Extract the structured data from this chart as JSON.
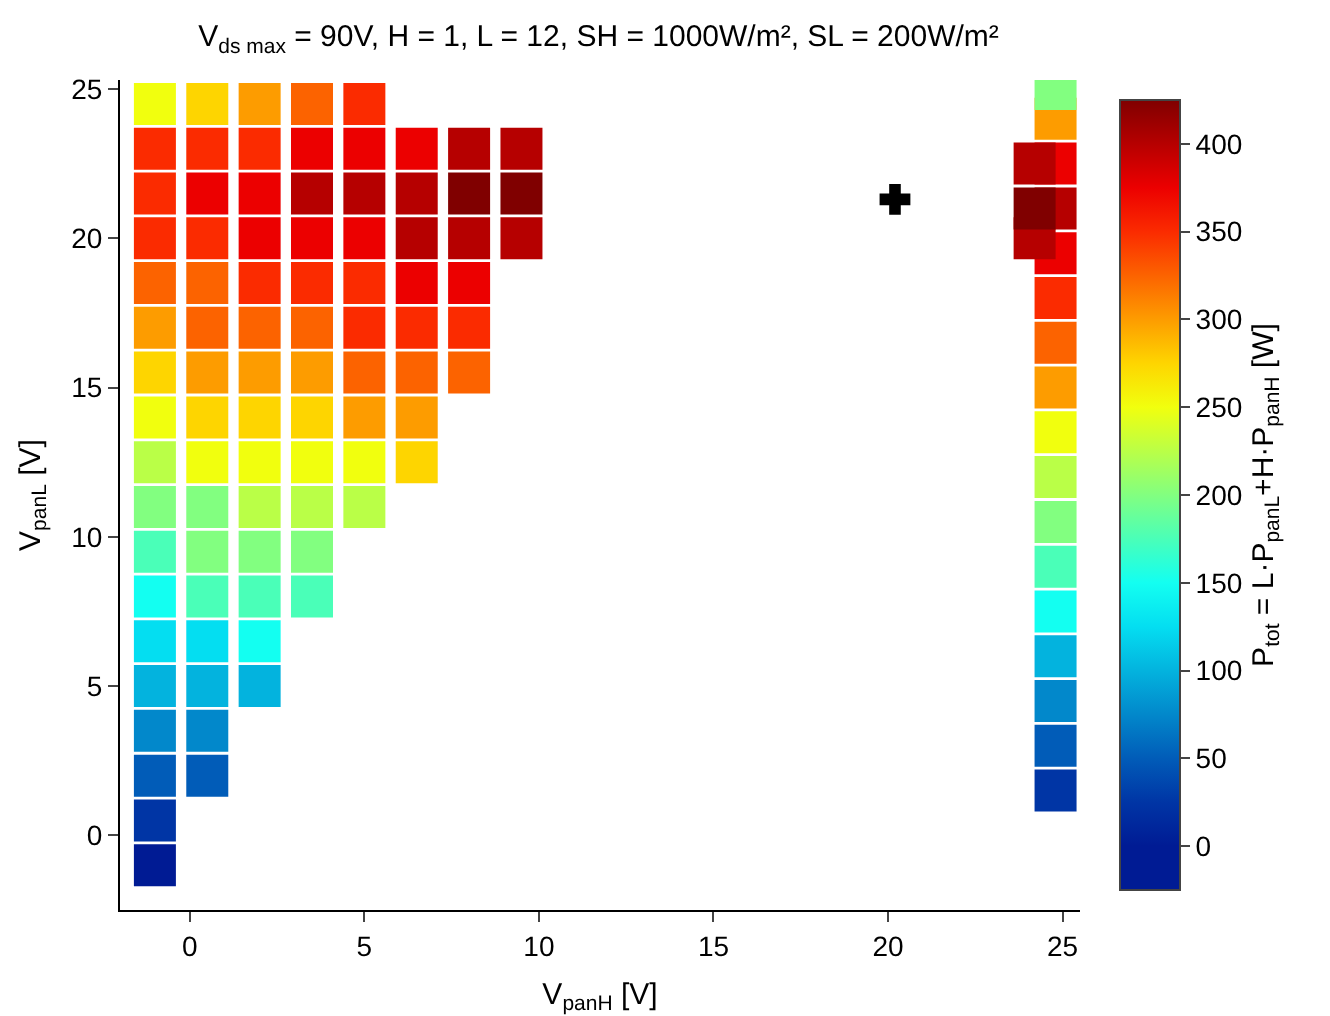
{
  "chart_data": {
    "type": "scatter",
    "title": "V$_{ds max}$ = 90V, H = 1, L = 12, SH = 1000W/m², SL = 200W/m²",
    "xlabel": "V$_{panH}$ [V]",
    "ylabel": "V$_{panL}$ [V]",
    "clabel": "P$_{tot}$ = L·P$_{panL}$+H·P$_{panH}$ [W]",
    "xlim": [
      -2,
      25.5
    ],
    "ylim": [
      -2.5,
      25.3
    ],
    "xticks": [
      0,
      5,
      10,
      15,
      20,
      25
    ],
    "yticks": [
      0,
      5,
      10,
      15,
      20,
      25
    ],
    "clim": [
      -25,
      425
    ],
    "cticks": [
      0,
      50,
      100,
      150,
      200,
      250,
      300,
      350,
      400
    ],
    "grid": false,
    "series": [
      {
        "marker": "square",
        "x": [
          -1,
          -1,
          -1,
          0.5,
          -1,
          0.5,
          -1,
          0.5,
          2,
          -1,
          0.5,
          2,
          -1,
          0.5,
          2,
          3.5,
          -1,
          0.5,
          2,
          3.5,
          -1,
          0.5,
          2,
          3.5,
          5,
          -1,
          0.5,
          2,
          3.5,
          5,
          6.5,
          -1,
          0.5,
          2,
          3.5,
          5,
          6.5,
          -1,
          0.5,
          2,
          3.5,
          5,
          6.5,
          8,
          -1,
          0.5,
          2,
          3.5,
          5,
          6.5,
          8,
          -1,
          0.5,
          2,
          3.5,
          5,
          6.5,
          8,
          -1,
          0.5,
          2,
          3.5,
          5,
          6.5,
          8,
          9.5,
          -1,
          0.5,
          2,
          3.5,
          5,
          6.5,
          8,
          9.5,
          -1,
          0.5,
          2,
          3.5,
          5,
          6.5,
          8,
          9.5,
          -1,
          0.5,
          2,
          3.5,
          5,
          24.8,
          24.8,
          24.8,
          24.8,
          24.8,
          24.8,
          24.8,
          24.8,
          24.8,
          24.8,
          24.8,
          24.8,
          24.8,
          24.8,
          24.8,
          24.8,
          24.8,
          24.2,
          24.2,
          24.2
        ],
        "values": [
          -1,
          0.5,
          2,
          2,
          3.5,
          3.5,
          5,
          5,
          5,
          6.5,
          6.5,
          6.5,
          8,
          8,
          8,
          8,
          9.5,
          9.5,
          9.5,
          9.5,
          11,
          11,
          11,
          11,
          11,
          12.5,
          12.5,
          12.5,
          12.5,
          12.5,
          12.5,
          14,
          14,
          14,
          14,
          14,
          14,
          15.5,
          15.5,
          15.5,
          15.5,
          15.5,
          15.5,
          15.5,
          17,
          17,
          17,
          17,
          17,
          17,
          17,
          18.5,
          18.5,
          18.5,
          18.5,
          18.5,
          18.5,
          18.5,
          20,
          20,
          20,
          20,
          20,
          20,
          20,
          20,
          21.5,
          21.5,
          21.5,
          21.5,
          21.5,
          21.5,
          21.5,
          21.5,
          23,
          23,
          23,
          23,
          23,
          23,
          23,
          23,
          24.5,
          24.5,
          24.5,
          24.5,
          24.5,
          1.5,
          3,
          4.5,
          6,
          7.5,
          9,
          10.5,
          12,
          13.5,
          15,
          16.5,
          18,
          19.5,
          21,
          22.5,
          24,
          25,
          20,
          21,
          22.5
        ],
        "cvalues": [
          0,
          25,
          50,
          50,
          75,
          75,
          100,
          100,
          100,
          125,
          125,
          150,
          150,
          175,
          175,
          175,
          175,
          200,
          200,
          200,
          200,
          200,
          225,
          225,
          225,
          225,
          250,
          250,
          250,
          250,
          275,
          250,
          275,
          275,
          275,
          300,
          300,
          275,
          300,
          300,
          300,
          325,
          325,
          325,
          300,
          325,
          325,
          325,
          350,
          350,
          350,
          325,
          325,
          350,
          350,
          350,
          375,
          375,
          350,
          350,
          375,
          375,
          375,
          400,
          400,
          400,
          350,
          375,
          375,
          400,
          400,
          400,
          425,
          425,
          350,
          350,
          350,
          375,
          375,
          375,
          400,
          400,
          250,
          275,
          300,
          325,
          350,
          25,
          50,
          75,
          100,
          150,
          175,
          200,
          225,
          250,
          300,
          325,
          350,
          375,
          400,
          375,
          300,
          200,
          400,
          425,
          400
        ],
        "colors": [
          "#001b94",
          "#0035a5",
          "#015cb8",
          "#015cb8",
          "#0288cb",
          "#0288cb",
          "#03b3de",
          "#03b3de",
          "#03b3de",
          "#04def1",
          "#04def1",
          "#13fff1",
          "#13fff1",
          "#4affb8",
          "#4affb8",
          "#4affb8",
          "#4affb8",
          "#82ff80",
          "#82ff80",
          "#82ff80",
          "#82ff80",
          "#82ff80",
          "#baff47",
          "#baff47",
          "#baff47",
          "#baff47",
          "#f1ff0e",
          "#f1ff0e",
          "#f1ff0e",
          "#f1ff0e",
          "#fed500",
          "#f1ff0e",
          "#fed500",
          "#fed500",
          "#fed500",
          "#fd9c00",
          "#fd9c00",
          "#fed500",
          "#fd9c00",
          "#fd9c00",
          "#fd9c00",
          "#fc6300",
          "#fc6300",
          "#fc6300",
          "#fd9c00",
          "#fc6300",
          "#fc6300",
          "#fc6300",
          "#fb2b00",
          "#fb2b00",
          "#fb2b00",
          "#fc6300",
          "#fc6300",
          "#fb2b00",
          "#fb2b00",
          "#fb2b00",
          "#ec0000",
          "#ec0000",
          "#fb2b00",
          "#fb2b00",
          "#ec0000",
          "#ec0000",
          "#ec0000",
          "#b60000",
          "#b60000",
          "#b60000",
          "#fb2b00",
          "#ec0000",
          "#ec0000",
          "#b60000",
          "#b60000",
          "#b60000",
          "#800000",
          "#800000",
          "#fb2b00",
          "#fb2b00",
          "#fb2b00",
          "#ec0000",
          "#ec0000",
          "#ec0000",
          "#b60000",
          "#b60000",
          "#f1ff0e",
          "#fed500",
          "#fd9c00",
          "#fc6300",
          "#fb2b00",
          "#0035a5",
          "#015cb8",
          "#0288cb",
          "#03b3de",
          "#13fff1",
          "#4affb8",
          "#82ff80",
          "#baff47",
          "#f1ff0e",
          "#fd9c00",
          "#fc6300",
          "#fb2b00",
          "#ec0000",
          "#b60000",
          "#ec0000",
          "#fd9c00",
          "#82ff80",
          "#b60000",
          "#800000",
          "#b60000"
        ]
      },
      {
        "marker": "cross",
        "color": "#000000",
        "x": [
          20.2
        ],
        "values": [
          21.3
        ]
      }
    ]
  }
}
